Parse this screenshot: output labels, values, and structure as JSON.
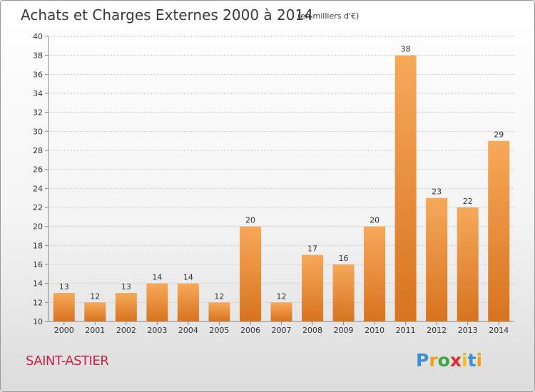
{
  "header": {
    "title": "Achats et Charges Externes 2000 à 2014",
    "subtitle": "(en milliers d'€)"
  },
  "footer": {
    "commune": "SAINT-ASTIER",
    "logo_text": "Proxiti",
    "logo_colors": [
      "#3a8fd6",
      "#f0a020",
      "#3aa84a",
      "#d8302f",
      "#f0c020",
      "#3a8fd6",
      "#f0a020"
    ]
  },
  "colors": {
    "bar_light": "#f6a95a",
    "bar_dark": "#d8731e",
    "grid": "#c8c8c8",
    "text": "#333333"
  },
  "chart_data": {
    "type": "bar",
    "title": "Achats et Charges Externes 2000 à 2014",
    "subtitle": "(en milliers d'€)",
    "xlabel": "",
    "ylabel": "",
    "categories": [
      "2000",
      "2001",
      "2002",
      "2003",
      "2004",
      "2005",
      "2006",
      "2007",
      "2008",
      "2009",
      "2010",
      "2011",
      "2012",
      "2013",
      "2014"
    ],
    "values": [
      13,
      12,
      13,
      14,
      14,
      12,
      20,
      12,
      17,
      16,
      20,
      38,
      23,
      22,
      29
    ],
    "ylim": [
      10,
      40
    ],
    "yticks": [
      10,
      12,
      14,
      16,
      18,
      20,
      22,
      24,
      26,
      28,
      30,
      32,
      34,
      36,
      38,
      40
    ],
    "grid": true,
    "data_labels": true,
    "legend": "none"
  }
}
